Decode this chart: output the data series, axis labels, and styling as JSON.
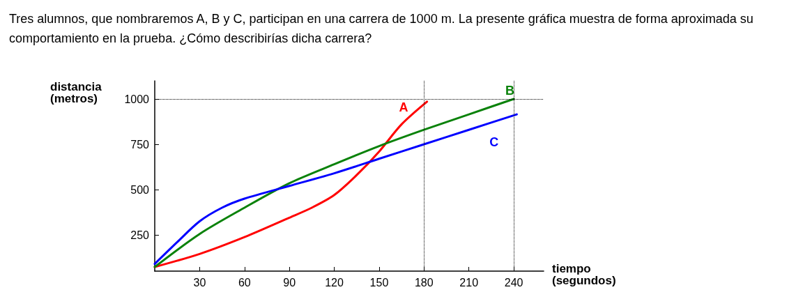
{
  "chart_data": {
    "type": "line",
    "title": "Tres alumnos, que nombraremos A, B y C, participan en una carrera de 1000 m. La presente gráfica muestra de forma aproximada su comportamiento en la prueba. ¿Cómo describirías dicha carrera?",
    "xlabel": "tiempo (segundos)",
    "ylabel": "distancia (metros)",
    "xlim": [
      0,
      260
    ],
    "ylim": [
      50,
      1100
    ],
    "xticks": [
      30,
      60,
      90,
      120,
      150,
      180,
      210,
      240
    ],
    "yticks": [
      250,
      500,
      750,
      1000
    ],
    "grid": false,
    "legend": false,
    "marker": "none",
    "series": [
      {
        "name": "A",
        "color": "#ff0000",
        "x": [
          0,
          30,
          60,
          90,
          105,
          120,
          135,
          150,
          165,
          182
        ],
        "values": [
          73,
          145,
          238,
          345,
          400,
          470,
          580,
          710,
          860,
          985
        ]
      },
      {
        "name": "B",
        "color": "#0a820a",
        "x": [
          0,
          30,
          60,
          90,
          120,
          150,
          180,
          210,
          240
        ],
        "values": [
          73,
          255,
          400,
          535,
          640,
          740,
          830,
          915,
          1000
        ]
      },
      {
        "name": "C",
        "color": "#0000ff",
        "x": [
          0,
          15,
          30,
          45,
          60,
          90,
          120,
          150,
          180,
          210,
          242
        ],
        "values": [
          90,
          210,
          325,
          400,
          450,
          520,
          590,
          670,
          750,
          830,
          915
        ]
      }
    ],
    "ref_lines": [
      {
        "axis": "y",
        "value": 1000,
        "line_style": "dotted"
      },
      {
        "axis": "x",
        "value": 180,
        "line_style": "dotted"
      },
      {
        "axis": "x",
        "value": 240,
        "line_style": "dotted"
      }
    ]
  }
}
